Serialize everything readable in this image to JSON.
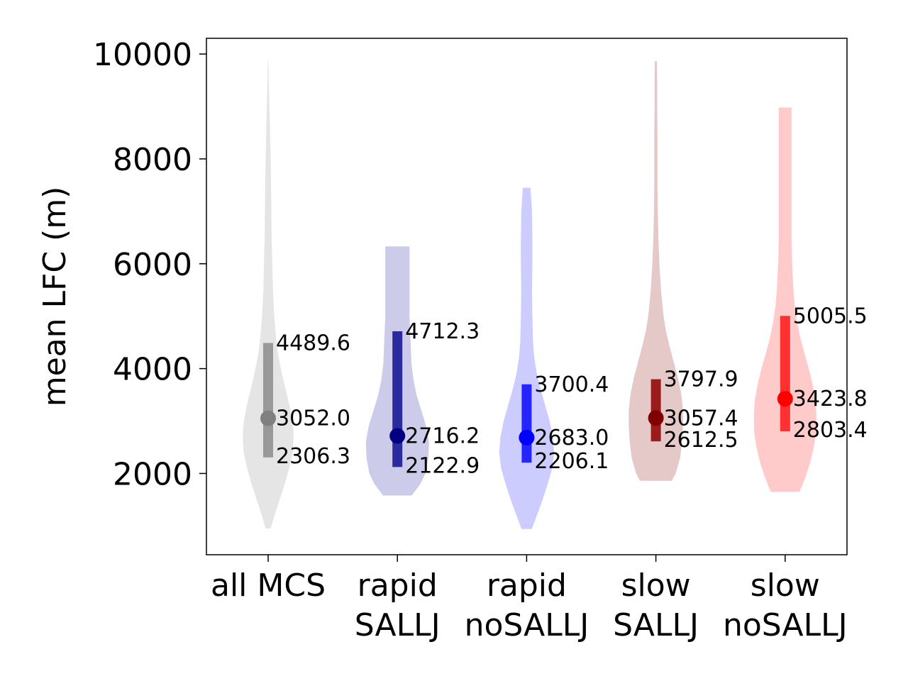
{
  "chart_data": {
    "type": "violin",
    "ylabel": "mean LFC (m)",
    "xlabel": "",
    "ylim": [
      450,
      10300
    ],
    "yticks": [
      2000,
      4000,
      6000,
      8000,
      10000
    ],
    "grid": false,
    "groups": [
      {
        "label_lines": [
          "all MCS"
        ],
        "min": 950,
        "max": 9870,
        "q1": 2306.3,
        "median": 3052.0,
        "q3": 4489.6,
        "q1_label": "2306.3",
        "median_label": "3052.0",
        "q3_label": "4489.6",
        "body_color": "#e5e5e5",
        "bar_color": "#999999",
        "median_color": "#808080",
        "profile": [
          [
            950,
            0.08
          ],
          [
            1200,
            0.2
          ],
          [
            1500,
            0.36
          ],
          [
            1800,
            0.52
          ],
          [
            2100,
            0.66
          ],
          [
            2400,
            0.77
          ],
          [
            2700,
            0.8
          ],
          [
            3000,
            0.76
          ],
          [
            3300,
            0.67
          ],
          [
            3600,
            0.55
          ],
          [
            3900,
            0.43
          ],
          [
            4200,
            0.33
          ],
          [
            4500,
            0.26
          ],
          [
            5000,
            0.19
          ],
          [
            5500,
            0.15
          ],
          [
            6000,
            0.13
          ],
          [
            6500,
            0.11
          ],
          [
            7000,
            0.1
          ],
          [
            7500,
            0.09
          ],
          [
            8000,
            0.08
          ],
          [
            8500,
            0.06
          ],
          [
            9000,
            0.04
          ],
          [
            9500,
            0.02
          ],
          [
            9870,
            0.01
          ]
        ]
      },
      {
        "label_lines": [
          "rapid",
          "SALLJ"
        ],
        "min": 1580,
        "max": 6330,
        "q1": 2122.9,
        "median": 2716.2,
        "q3": 4712.3,
        "q1_label": "2122.9",
        "median_label": "2716.2",
        "q3_label": "4712.3",
        "body_color": "#ccccea",
        "bar_color": "#2b2ba0",
        "median_color": "#000080",
        "profile": [
          [
            1580,
            0.45
          ],
          [
            1800,
            0.72
          ],
          [
            2000,
            0.88
          ],
          [
            2300,
            0.97
          ],
          [
            2600,
            0.99
          ],
          [
            2900,
            0.9
          ],
          [
            3200,
            0.75
          ],
          [
            3500,
            0.6
          ],
          [
            3800,
            0.5
          ],
          [
            4100,
            0.44
          ],
          [
            4400,
            0.42
          ],
          [
            4700,
            0.4
          ],
          [
            5000,
            0.38
          ],
          [
            5300,
            0.38
          ],
          [
            5600,
            0.38
          ],
          [
            5900,
            0.38
          ],
          [
            6330,
            0.38
          ]
        ]
      },
      {
        "label_lines": [
          "rapid",
          "noSALLJ"
        ],
        "min": 940,
        "max": 7450,
        "q1": 2206.1,
        "median": 2683.0,
        "q3": 3700.4,
        "q1_label": "2206.1",
        "median_label": "2683.0",
        "q3_label": "3700.4",
        "body_color": "#ccccff",
        "bar_color": "#2525ff",
        "median_color": "#0000ff",
        "profile": [
          [
            940,
            0.16
          ],
          [
            1200,
            0.32
          ],
          [
            1500,
            0.5
          ],
          [
            1800,
            0.66
          ],
          [
            2100,
            0.8
          ],
          [
            2400,
            0.86
          ],
          [
            2700,
            0.82
          ],
          [
            3000,
            0.72
          ],
          [
            3300,
            0.58
          ],
          [
            3600,
            0.44
          ],
          [
            3900,
            0.32
          ],
          [
            4200,
            0.24
          ],
          [
            4500,
            0.2
          ],
          [
            5000,
            0.18
          ],
          [
            5500,
            0.17
          ],
          [
            6000,
            0.18
          ],
          [
            6500,
            0.18
          ],
          [
            7000,
            0.17
          ],
          [
            7450,
            0.12
          ]
        ]
      },
      {
        "label_lines": [
          "slow",
          "SALLJ"
        ],
        "min": 1860,
        "max": 9870,
        "q1": 2612.5,
        "median": 3057.4,
        "q3": 3797.9,
        "q1_label": "2612.5",
        "median_label": "3057.4",
        "q3_label": "3797.9",
        "body_color": "#e5c9c9",
        "bar_color": "#9b1c1c",
        "median_color": "#800000",
        "profile": [
          [
            1860,
            0.5
          ],
          [
            2000,
            0.62
          ],
          [
            2300,
            0.76
          ],
          [
            2600,
            0.82
          ],
          [
            2900,
            0.85
          ],
          [
            3200,
            0.85
          ],
          [
            3500,
            0.8
          ],
          [
            3800,
            0.7
          ],
          [
            4100,
            0.57
          ],
          [
            4400,
            0.44
          ],
          [
            4700,
            0.32
          ],
          [
            5000,
            0.24
          ],
          [
            5500,
            0.16
          ],
          [
            6000,
            0.11
          ],
          [
            6500,
            0.08
          ],
          [
            7000,
            0.06
          ],
          [
            7500,
            0.05
          ],
          [
            8000,
            0.05
          ],
          [
            8500,
            0.05
          ],
          [
            9000,
            0.04
          ],
          [
            9500,
            0.04
          ],
          [
            9870,
            0.03
          ]
        ]
      },
      {
        "label_lines": [
          "slow",
          "noSALLJ"
        ],
        "min": 1650,
        "max": 8980,
        "q1": 2803.4,
        "median": 3423.8,
        "q3": 5005.5,
        "q1_label": "2803.4",
        "median_label": "3423.8",
        "q3_label": "5005.5",
        "body_color": "#ffcaca",
        "bar_color": "#ff3030",
        "median_color": "#ff0000",
        "profile": [
          [
            1650,
            0.45
          ],
          [
            1900,
            0.62
          ],
          [
            2200,
            0.78
          ],
          [
            2500,
            0.9
          ],
          [
            2800,
            0.97
          ],
          [
            3100,
            0.98
          ],
          [
            3400,
            0.95
          ],
          [
            3700,
            0.86
          ],
          [
            4000,
            0.74
          ],
          [
            4300,
            0.6
          ],
          [
            4600,
            0.47
          ],
          [
            4900,
            0.37
          ],
          [
            5200,
            0.3
          ],
          [
            5500,
            0.26
          ],
          [
            6000,
            0.22
          ],
          [
            6500,
            0.2
          ],
          [
            7000,
            0.2
          ],
          [
            7500,
            0.2
          ],
          [
            8000,
            0.2
          ],
          [
            8500,
            0.2
          ],
          [
            8980,
            0.2
          ]
        ]
      }
    ]
  }
}
